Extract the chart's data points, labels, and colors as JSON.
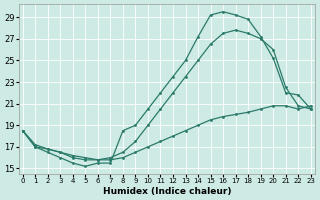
{
  "xlabel": "Humidex (Indice chaleur)",
  "bg_color": "#ceeae4",
  "line_color": "#2a7a6a",
  "grid_color": "#b0d8d0",
  "yticks": [
    15,
    17,
    19,
    21,
    23,
    25,
    27,
    29
  ],
  "xticks": [
    0,
    1,
    2,
    3,
    4,
    5,
    6,
    7,
    8,
    9,
    10,
    11,
    12,
    13,
    14,
    15,
    16,
    17,
    18,
    19,
    20,
    21,
    22,
    23
  ],
  "curve1_x": [
    0,
    1,
    2,
    3,
    4,
    5,
    6,
    7,
    8,
    9,
    10,
    11,
    12,
    13,
    14,
    15,
    16,
    17,
    18,
    19,
    20,
    21,
    22,
    23
  ],
  "curve1_y": [
    18.5,
    17.0,
    16.5,
    16.0,
    15.5,
    15.2,
    15.5,
    15.5,
    18.5,
    19.0,
    20.5,
    22.0,
    23.5,
    25.0,
    27.2,
    29.2,
    29.5,
    29.2,
    28.8,
    27.2,
    25.2,
    22.0,
    21.8,
    20.5
  ],
  "curve2_x": [
    0,
    1,
    2,
    3,
    4,
    5,
    6,
    7,
    8,
    9,
    10,
    11,
    12,
    13,
    14,
    15,
    16,
    17,
    18,
    19,
    20,
    21,
    22,
    23
  ],
  "curve2_y": [
    18.5,
    17.2,
    16.8,
    16.5,
    16.0,
    15.8,
    15.8,
    16.0,
    16.5,
    17.5,
    19.0,
    20.5,
    22.0,
    23.5,
    25.0,
    26.5,
    27.5,
    27.8,
    27.5,
    27.0,
    26.0,
    22.5,
    20.8,
    20.5
  ],
  "curve3_x": [
    0,
    1,
    2,
    3,
    4,
    5,
    6,
    7,
    8,
    9,
    10,
    11,
    12,
    13,
    14,
    15,
    16,
    17,
    18,
    19,
    20,
    21,
    22,
    23
  ],
  "curve3_y": [
    18.5,
    17.0,
    16.8,
    16.5,
    16.2,
    16.0,
    15.8,
    15.8,
    16.0,
    16.5,
    17.0,
    17.5,
    18.0,
    18.5,
    19.0,
    19.5,
    19.8,
    20.0,
    20.2,
    20.5,
    20.8,
    20.8,
    20.5,
    20.8
  ]
}
